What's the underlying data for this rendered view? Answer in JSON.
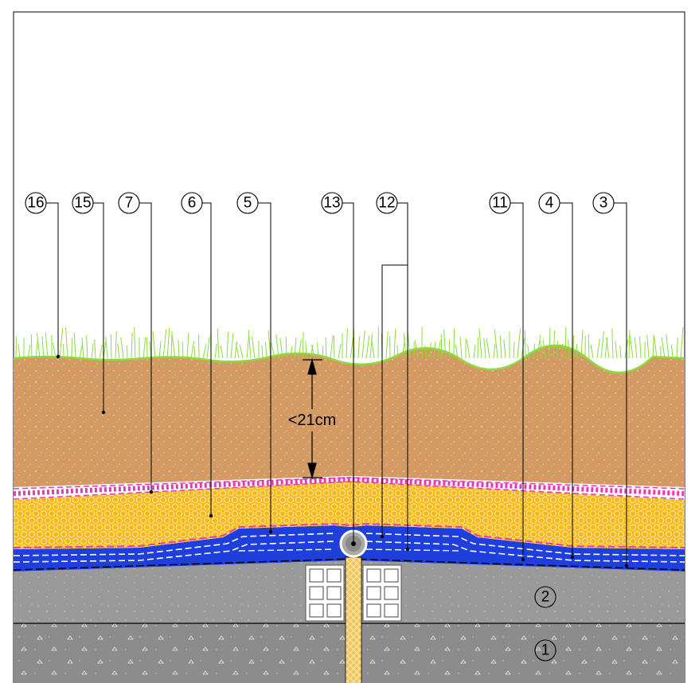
{
  "diagram": {
    "dimension_label": "<21cm",
    "callouts": [
      {
        "id": "16",
        "label": "16",
        "name": "callout-16"
      },
      {
        "id": "15",
        "label": "15",
        "name": "callout-15"
      },
      {
        "id": "7",
        "label": "7",
        "name": "callout-7"
      },
      {
        "id": "6",
        "label": "6",
        "name": "callout-6"
      },
      {
        "id": "5",
        "label": "5",
        "name": "callout-5"
      },
      {
        "id": "13",
        "label": "13",
        "name": "callout-13"
      },
      {
        "id": "12",
        "label": "12",
        "name": "callout-12"
      },
      {
        "id": "11",
        "label": "11",
        "name": "callout-11"
      },
      {
        "id": "4",
        "label": "4",
        "name": "callout-4"
      },
      {
        "id": "3",
        "label": "3",
        "name": "callout-3"
      }
    ],
    "layer_labels": [
      {
        "id": "2",
        "label": "2"
      },
      {
        "id": "1",
        "label": "1"
      }
    ],
    "colors": {
      "soil": "#d49a64",
      "grass": "#8bdc3c",
      "gravel": "#f7b81b",
      "drainage": "#1e3fdc",
      "membrane": "#e43ab8",
      "concrete_upper": "#9a9a9a",
      "concrete_lower": "#8c8c8c",
      "joint_filler": "#f5c65c"
    }
  }
}
